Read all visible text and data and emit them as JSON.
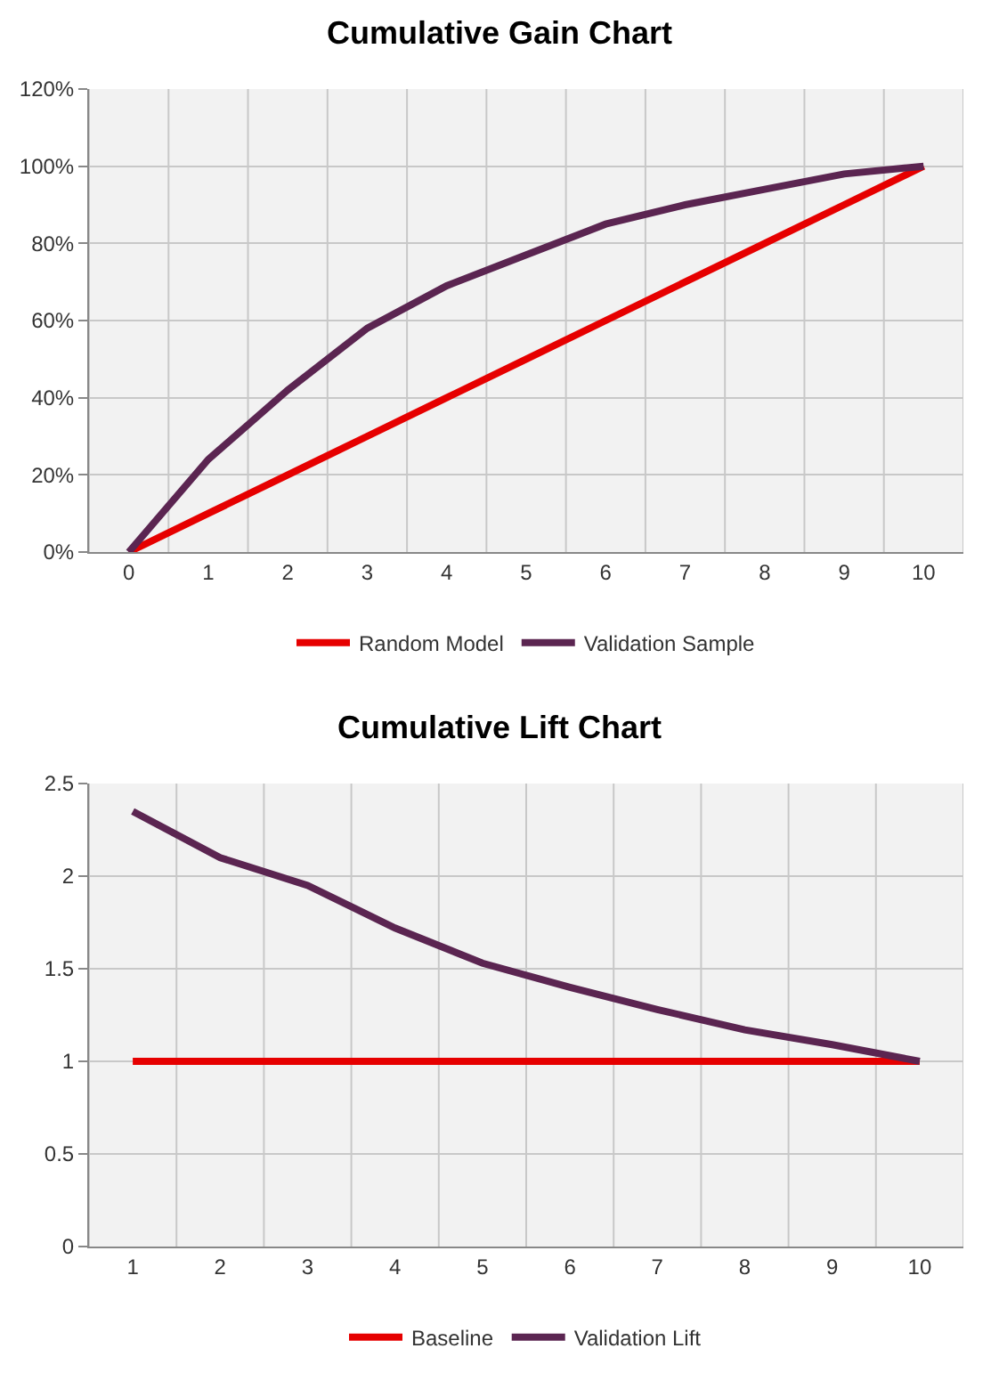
{
  "chart_data": [
    {
      "type": "line",
      "title": "Cumulative Gain Chart",
      "categories": [
        "0",
        "1",
        "2",
        "3",
        "4",
        "5",
        "6",
        "7",
        "8",
        "9",
        "10"
      ],
      "series": [
        {
          "name": "Random Model",
          "color": "#e60000",
          "values": [
            0,
            10,
            20,
            30,
            40,
            50,
            60,
            70,
            80,
            90,
            100
          ]
        },
        {
          "name": "Validation Sample",
          "color": "#5b2551",
          "values": [
            0,
            24,
            42,
            58,
            69,
            77,
            85,
            90,
            94,
            98,
            100
          ]
        }
      ],
      "ylim": [
        0,
        120
      ],
      "yticks": [
        {
          "value": 0,
          "label": "0%"
        },
        {
          "value": 20,
          "label": "20%"
        },
        {
          "value": 40,
          "label": "40%"
        },
        {
          "value": 60,
          "label": "60%"
        },
        {
          "value": 80,
          "label": "80%"
        },
        {
          "value": 100,
          "label": "100%"
        },
        {
          "value": 120,
          "label": "120%"
        }
      ],
      "grid": true,
      "legend": "bottom",
      "marker": "none",
      "line_style": "solid"
    },
    {
      "type": "line",
      "title": "Cumulative Lift Chart",
      "categories": [
        "1",
        "2",
        "3",
        "4",
        "5",
        "6",
        "7",
        "8",
        "9",
        "10"
      ],
      "series": [
        {
          "name": "Baseline",
          "color": "#e60000",
          "values": [
            1,
            1,
            1,
            1,
            1,
            1,
            1,
            1,
            1,
            1
          ]
        },
        {
          "name": "Validation Lift",
          "color": "#5b2551",
          "values": [
            2.35,
            2.1,
            1.95,
            1.72,
            1.53,
            1.4,
            1.28,
            1.17,
            1.09,
            1.0
          ]
        }
      ],
      "ylim": [
        0,
        2.5
      ],
      "yticks": [
        0,
        {
          "value": 0.5,
          "label": "0.5"
        },
        1,
        {
          "value": 1.5,
          "label": "1.5"
        },
        2,
        {
          "value": 2.5,
          "label": "2.5"
        }
      ],
      "grid": true,
      "legend": "bottom",
      "marker": "none",
      "line_style": "solid"
    }
  ]
}
